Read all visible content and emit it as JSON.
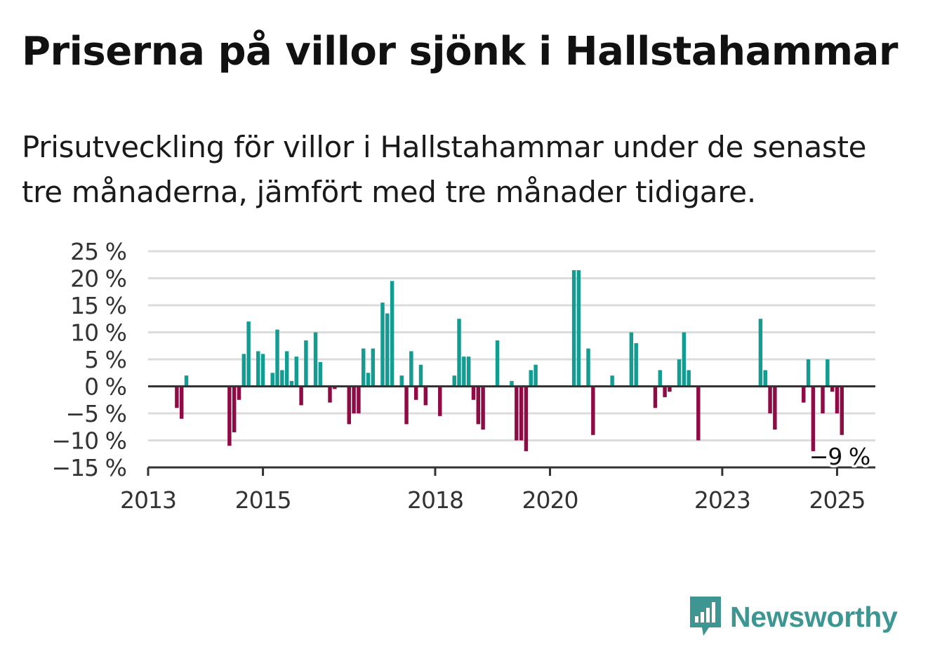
{
  "title": "Priserna på villor sjönk i Hallstahammar",
  "subtitle": "Prisutveckling för villor i Hallstahammar under de senaste tre månaderna, jämfört med tre månader tidigare.",
  "brand": {
    "name": "Newsworthy",
    "icon": "newsworthy-chart-icon",
    "color": "#3d9691"
  },
  "colors": {
    "positive": "#139c92",
    "negative": "#8e0b46",
    "grid": "#dcdcdc",
    "axis": "#333333"
  },
  "chart_data": {
    "type": "bar",
    "unit": "%",
    "y_ticks": [
      25,
      20,
      15,
      10,
      5,
      0,
      -5,
      -10,
      -15
    ],
    "y_tick_labels": [
      "25 %",
      "20 %",
      "15 %",
      "10 %",
      "5 %",
      "0 %",
      "−5 %",
      "−10 %",
      "−15 %"
    ],
    "ylim": [
      -15,
      25
    ],
    "x_ticks": [
      "2013",
      "2015",
      "2018",
      "2020",
      "2023",
      "2025"
    ],
    "grid": true,
    "last_value_label": "−9 %",
    "x": [
      "2013-01",
      "2013-02",
      "2013-03",
      "2013-04",
      "2013-05",
      "2013-06",
      "2013-07",
      "2013-08",
      "2013-09",
      "2013-10",
      "2013-11",
      "2013-12",
      "2014-01",
      "2014-02",
      "2014-03",
      "2014-04",
      "2014-05",
      "2014-06",
      "2014-07",
      "2014-08",
      "2014-09",
      "2014-10",
      "2014-11",
      "2014-12",
      "2015-01",
      "2015-02",
      "2015-03",
      "2015-04",
      "2015-05",
      "2015-06",
      "2015-07",
      "2015-08",
      "2015-09",
      "2015-10",
      "2015-11",
      "2015-12",
      "2016-01",
      "2016-02",
      "2016-03",
      "2016-04",
      "2016-05",
      "2016-06",
      "2016-07",
      "2016-08",
      "2016-09",
      "2016-10",
      "2016-11",
      "2016-12",
      "2017-01",
      "2017-02",
      "2017-03",
      "2017-04",
      "2017-05",
      "2017-06",
      "2017-07",
      "2017-08",
      "2017-09",
      "2017-10",
      "2017-11",
      "2017-12",
      "2018-01",
      "2018-02",
      "2018-03",
      "2018-04",
      "2018-05",
      "2018-06",
      "2018-07",
      "2018-08",
      "2018-09",
      "2018-10",
      "2018-11",
      "2018-12",
      "2019-01",
      "2019-02",
      "2019-03",
      "2019-04",
      "2019-05",
      "2019-06",
      "2019-07",
      "2019-08",
      "2019-09",
      "2019-10",
      "2019-11",
      "2019-12",
      "2020-01",
      "2020-02",
      "2020-03",
      "2020-04",
      "2020-05",
      "2020-06",
      "2020-07",
      "2020-08",
      "2020-09",
      "2020-10",
      "2020-11",
      "2020-12",
      "2021-01",
      "2021-02",
      "2021-03",
      "2021-04",
      "2021-05",
      "2021-06",
      "2021-07",
      "2021-08",
      "2021-09",
      "2021-10",
      "2021-11",
      "2021-12",
      "2022-01",
      "2022-02",
      "2022-03",
      "2022-04",
      "2022-05",
      "2022-06",
      "2022-07",
      "2022-08",
      "2022-09",
      "2022-10",
      "2022-11",
      "2022-12",
      "2023-01",
      "2023-02",
      "2023-03",
      "2023-04",
      "2023-05",
      "2023-06",
      "2023-07",
      "2023-08",
      "2023-09",
      "2023-10",
      "2023-11",
      "2023-12",
      "2024-01",
      "2024-02",
      "2024-03",
      "2024-04",
      "2024-05",
      "2024-06",
      "2024-07",
      "2024-08",
      "2024-09",
      "2024-10",
      "2024-11",
      "2024-12",
      "2025-01",
      "2025-02"
    ],
    "values": [
      null,
      null,
      null,
      null,
      null,
      null,
      -4,
      -6,
      2,
      null,
      null,
      null,
      null,
      null,
      null,
      null,
      null,
      -11,
      -8.5,
      -2.5,
      6,
      12,
      null,
      6.5,
      6,
      null,
      2.5,
      10.5,
      3,
      6.5,
      1,
      5.5,
      -3.5,
      8.5,
      null,
      10,
      4.5,
      null,
      -3,
      -0.5,
      null,
      null,
      -7,
      -5,
      -5,
      7,
      2.5,
      7,
      null,
      15.5,
      13.5,
      19.5,
      null,
      2,
      -7,
      6.5,
      -2.5,
      4,
      -3.5,
      null,
      null,
      -5.5,
      null,
      null,
      2,
      12.5,
      5.5,
      5.5,
      -2.5,
      -7,
      -8,
      null,
      null,
      8.5,
      null,
      null,
      1,
      -10,
      -10,
      -12,
      3,
      4,
      null,
      null,
      null,
      null,
      null,
      null,
      null,
      21.5,
      21.5,
      null,
      7,
      -9,
      null,
      null,
      null,
      2,
      null,
      null,
      null,
      10,
      8,
      null,
      null,
      null,
      -4,
      3,
      -2,
      -1,
      null,
      5,
      10,
      3,
      null,
      -10,
      null,
      null,
      null,
      null,
      null,
      null,
      null,
      null,
      null,
      null,
      null,
      null,
      12.5,
      3,
      -5,
      -8,
      null,
      null,
      null,
      null,
      null,
      -3,
      5,
      -12,
      null,
      -5,
      5,
      -1,
      -5,
      -9
    ]
  }
}
